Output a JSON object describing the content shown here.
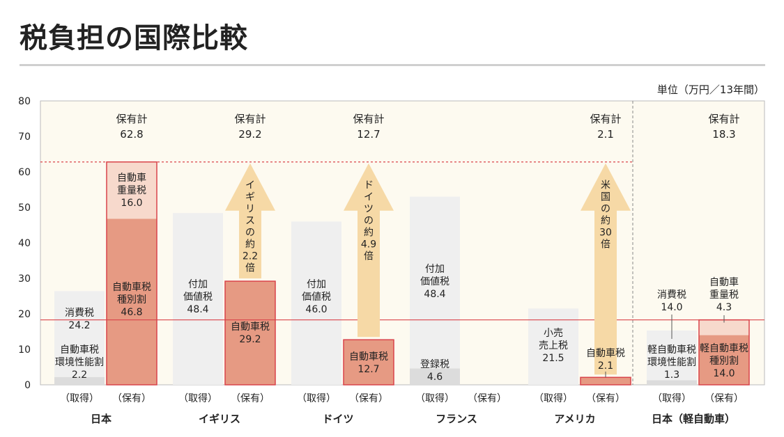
{
  "page": {
    "title": "税負担の国際比較",
    "unit": "単位（万円／13年間）"
  },
  "chart_data": {
    "type": "bar",
    "title": "税負担の国際比較",
    "unit": "単位（万円／13年間）",
    "ylim": [
      0,
      80
    ],
    "yticks": [
      0,
      10,
      20,
      30,
      40,
      50,
      60,
      70,
      80
    ],
    "reference_lines": {
      "japan_holding_total": 62.8,
      "kei_holding_total": 18.3
    },
    "groups": [
      {
        "name": "日本",
        "total_label": [
          "保有計",
          "62.8"
        ],
        "arrow": null,
        "bars": [
          {
            "label": "（取得）",
            "kind": "acq",
            "segments": [
              {
                "name": "自動車税環境性能割",
                "value": 2.2,
                "lines": [
                  "自動車税",
                  "環境性能割",
                  "2.2"
                ]
              },
              {
                "name": "消費税",
                "value": 24.2,
                "lines": [
                  "消費税",
                  "24.2"
                ]
              }
            ]
          },
          {
            "label": "（保有）",
            "kind": "own",
            "segments": [
              {
                "name": "自動車税種別割",
                "value": 46.8,
                "lines": [
                  "自動車税",
                  "種別割",
                  "46.8"
                ]
              },
              {
                "name": "自動車重量税",
                "value": 16.0,
                "lines": [
                  "自動車",
                  "重量税",
                  "16.0"
                ]
              }
            ]
          }
        ]
      },
      {
        "name": "イギリス",
        "total_label": [
          "保有計",
          "29.2"
        ],
        "arrow": [
          "イ",
          "ギ",
          "リ",
          "ス",
          "の",
          "約",
          "2.2",
          "倍"
        ],
        "bars": [
          {
            "label": "（取得）",
            "kind": "acq",
            "segments": [
              {
                "name": "付加価値税",
                "value": 48.4,
                "lines": [
                  "付加",
                  "価値税",
                  "48.4"
                ]
              }
            ]
          },
          {
            "label": "（保有）",
            "kind": "own",
            "segments": [
              {
                "name": "自動車税",
                "value": 29.2,
                "lines": [
                  "自動車税",
                  "29.2"
                ]
              }
            ]
          }
        ]
      },
      {
        "name": "ドイツ",
        "total_label": [
          "保有計",
          "12.7"
        ],
        "arrow": [
          "ド",
          "イ",
          "ツ",
          "の",
          "約",
          "4.9",
          "倍"
        ],
        "bars": [
          {
            "label": "（取得）",
            "kind": "acq",
            "segments": [
              {
                "name": "付加価値税",
                "value": 46.0,
                "lines": [
                  "付加",
                  "価値税",
                  "46.0"
                ]
              }
            ]
          },
          {
            "label": "（保有）",
            "kind": "own",
            "segments": [
              {
                "name": "自動車税",
                "value": 12.7,
                "lines": [
                  "自動車税",
                  "12.7"
                ]
              }
            ]
          }
        ]
      },
      {
        "name": "フランス",
        "total_label": null,
        "arrow": null,
        "bars": [
          {
            "label": "（取得）",
            "kind": "acq",
            "segments": [
              {
                "name": "登録税",
                "value": 4.6,
                "lines": [
                  "登録税",
                  "4.6"
                ]
              },
              {
                "name": "付加価値税",
                "value": 48.4,
                "lines": [
                  "付加",
                  "価値税",
                  "48.4"
                ]
              }
            ]
          },
          {
            "label": "（保有）",
            "kind": "own",
            "segments": []
          }
        ]
      },
      {
        "name": "アメリカ",
        "total_label": [
          "保有計",
          "2.1"
        ],
        "arrow": [
          "米",
          "国",
          "の",
          "約",
          "30",
          "倍"
        ],
        "bars": [
          {
            "label": "（取得）",
            "kind": "acq",
            "segments": [
              {
                "name": "小売売上税",
                "value": 21.5,
                "lines": [
                  "小売",
                  "売上税",
                  "21.5"
                ]
              }
            ]
          },
          {
            "label": "（保有）",
            "kind": "own",
            "segments": [
              {
                "name": "自動車税",
                "value": 2.1,
                "lines": [
                  "自動車税",
                  "2.1"
                ]
              }
            ]
          }
        ]
      },
      {
        "name": "日本（軽自動車）",
        "total_label": [
          "保有計",
          "18.3"
        ],
        "arrow": null,
        "bars": [
          {
            "label": "（取得）",
            "kind": "acq",
            "segments": [
              {
                "name": "軽自動車税環境性能割",
                "value": 1.3,
                "lines": [
                  "軽自動車税",
                  "環境性能割",
                  "1.3"
                ]
              },
              {
                "name": "消費税",
                "value": 14.0,
                "lines": [
                  "消費税",
                  "14.0"
                ]
              }
            ]
          },
          {
            "label": "（保有）",
            "kind": "own",
            "segments": [
              {
                "name": "軽自動車税種別割",
                "value": 14.0,
                "lines": [
                  "軽自動車税",
                  "種別割",
                  "14.0"
                ]
              },
              {
                "name": "自動車重量税",
                "value": 4.3,
                "lines": [
                  "自動車",
                  "重量税",
                  "4.3"
                ]
              }
            ]
          }
        ]
      }
    ]
  },
  "colors": {
    "plot_bg": "#fdfaf0",
    "acq_light": "#efefef",
    "acq_dark": "#dcdcdc",
    "own_main": "#e69a83",
    "own_light": "#f7d9cc",
    "own_border": "#d9434a",
    "arrow": "#f6d9a6",
    "ref_line": "#d9434a"
  }
}
